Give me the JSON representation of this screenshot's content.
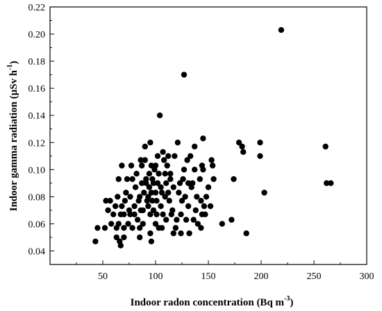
{
  "chart_data": {
    "type": "scatter",
    "title": "",
    "xlabel": "Indoor radon concentration (Bq m",
    "xlabel_sup": "-3",
    "xlabel_end": ")",
    "ylabel": "Indoor gamma radiation (µSv h",
    "ylabel_sup": "-1",
    "ylabel_end": ")",
    "xlim": [
      0,
      300
    ],
    "ylim": [
      0.03,
      0.22
    ],
    "xticks": [
      50,
      100,
      150,
      200,
      250,
      300
    ],
    "yticks": [
      0.04,
      0.06,
      0.08,
      0.1,
      0.12,
      0.14,
      0.16,
      0.18,
      0.2,
      0.22
    ],
    "ytick_labels": [
      "0.04",
      "0.06",
      "0.08",
      "0.10",
      "0.12",
      "0.14",
      "0.16",
      "0.18",
      "0.20",
      "0.22"
    ],
    "grid": false,
    "legend": "none",
    "marker_color": "#000000",
    "points": [
      [
        43,
        0.047
      ],
      [
        45,
        0.057
      ],
      [
        52,
        0.057
      ],
      [
        53,
        0.077
      ],
      [
        55,
        0.07
      ],
      [
        57,
        0.077
      ],
      [
        58,
        0.06
      ],
      [
        60,
        0.067
      ],
      [
        62,
        0.073
      ],
      [
        63,
        0.05
      ],
      [
        63,
        0.057
      ],
      [
        64,
        0.08
      ],
      [
        65,
        0.093
      ],
      [
        65,
        0.06
      ],
      [
        66,
        0.047
      ],
      [
        67,
        0.044
      ],
      [
        67,
        0.067
      ],
      [
        68,
        0.073
      ],
      [
        68,
        0.103
      ],
      [
        70,
        0.05
      ],
      [
        70,
        0.057
      ],
      [
        70,
        0.067
      ],
      [
        71,
        0.077
      ],
      [
        72,
        0.083
      ],
      [
        73,
        0.093
      ],
      [
        74,
        0.06
      ],
      [
        75,
        0.07
      ],
      [
        76,
        0.08
      ],
      [
        76,
        0.067
      ],
      [
        77,
        0.103
      ],
      [
        78,
        0.093
      ],
      [
        78,
        0.057
      ],
      [
        80,
        0.073
      ],
      [
        80,
        0.067
      ],
      [
        81,
        0.087
      ],
      [
        82,
        0.097
      ],
      [
        83,
        0.063
      ],
      [
        84,
        0.077
      ],
      [
        85,
        0.057
      ],
      [
        85,
        0.05
      ],
      [
        85,
        0.08
      ],
      [
        86,
        0.107
      ],
      [
        86,
        0.07
      ],
      [
        87,
        0.09
      ],
      [
        87,
        0.103
      ],
      [
        88,
        0.06
      ],
      [
        88,
        0.07
      ],
      [
        89,
        0.083
      ],
      [
        90,
        0.117
      ],
      [
        90,
        0.107
      ],
      [
        91,
        0.093
      ],
      [
        91,
        0.09
      ],
      [
        92,
        0.077
      ],
      [
        93,
        0.08
      ],
      [
        93,
        0.073
      ],
      [
        94,
        0.097
      ],
      [
        94,
        0.087
      ],
      [
        95,
        0.053
      ],
      [
        95,
        0.12
      ],
      [
        95,
        0.067
      ],
      [
        96,
        0.103
      ],
      [
        96,
        0.083
      ],
      [
        96,
        0.047
      ],
      [
        97,
        0.093
      ],
      [
        97,
        0.077
      ],
      [
        98,
        0.07
      ],
      [
        98,
        0.09
      ],
      [
        99,
        0.1
      ],
      [
        100,
        0.083
      ],
      [
        100,
        0.06
      ],
      [
        100,
        0.103
      ],
      [
        101,
        0.067
      ],
      [
        101,
        0.077
      ],
      [
        102,
        0.11
      ],
      [
        102,
        0.09
      ],
      [
        103,
        0.097
      ],
      [
        103,
        0.057
      ],
      [
        104,
        0.14
      ],
      [
        105,
        0.087
      ],
      [
        105,
        0.073
      ],
      [
        106,
        0.057
      ],
      [
        106,
        0.083
      ],
      [
        107,
        0.113
      ],
      [
        107,
        0.067
      ],
      [
        108,
        0.107
      ],
      [
        109,
        0.097
      ],
      [
        109,
        0.08
      ],
      [
        110,
        0.09
      ],
      [
        110,
        0.063
      ],
      [
        111,
        0.103
      ],
      [
        112,
        0.083
      ],
      [
        112,
        0.11
      ],
      [
        113,
        0.077
      ],
      [
        114,
        0.093
      ],
      [
        114,
        0.097
      ],
      [
        115,
        0.067
      ],
      [
        116,
        0.07
      ],
      [
        117,
        0.087
      ],
      [
        117,
        0.053
      ],
      [
        118,
        0.11
      ],
      [
        119,
        0.057
      ],
      [
        120,
        0.063
      ],
      [
        121,
        0.12
      ],
      [
        122,
        0.083
      ],
      [
        123,
        0.09
      ],
      [
        124,
        0.067
      ],
      [
        124,
        0.053
      ],
      [
        125,
        0.077
      ],
      [
        126,
        0.093
      ],
      [
        127,
        0.17
      ],
      [
        127,
        0.1
      ],
      [
        128,
        0.08
      ],
      [
        129,
        0.063
      ],
      [
        130,
        0.107
      ],
      [
        131,
        0.09
      ],
      [
        131,
        0.073
      ],
      [
        132,
        0.053
      ],
      [
        133,
        0.11
      ],
      [
        134,
        0.087
      ],
      [
        135,
        0.09
      ],
      [
        136,
        0.063
      ],
      [
        137,
        0.1
      ],
      [
        137,
        0.117
      ],
      [
        138,
        0.07
      ],
      [
        139,
        0.08
      ],
      [
        140,
        0.06
      ],
      [
        142,
        0.093
      ],
      [
        143,
        0.057
      ],
      [
        143,
        0.077
      ],
      [
        144,
        0.067
      ],
      [
        144,
        0.103
      ],
      [
        145,
        0.123
      ],
      [
        145,
        0.1
      ],
      [
        146,
        0.073
      ],
      [
        147,
        0.067
      ],
      [
        148,
        0.08
      ],
      [
        150,
        0.087
      ],
      [
        152,
        0.073
      ],
      [
        153,
        0.107
      ],
      [
        154,
        0.103
      ],
      [
        155,
        0.093
      ],
      [
        163,
        0.06
      ],
      [
        172,
        0.063
      ],
      [
        174,
        0.093
      ],
      [
        179,
        0.12
      ],
      [
        182,
        0.117
      ],
      [
        183,
        0.113
      ],
      [
        186,
        0.053
      ],
      [
        199,
        0.12
      ],
      [
        199,
        0.11
      ],
      [
        203,
        0.083
      ],
      [
        219,
        0.203
      ],
      [
        261,
        0.117
      ],
      [
        262,
        0.09
      ],
      [
        266,
        0.09
      ]
    ]
  }
}
